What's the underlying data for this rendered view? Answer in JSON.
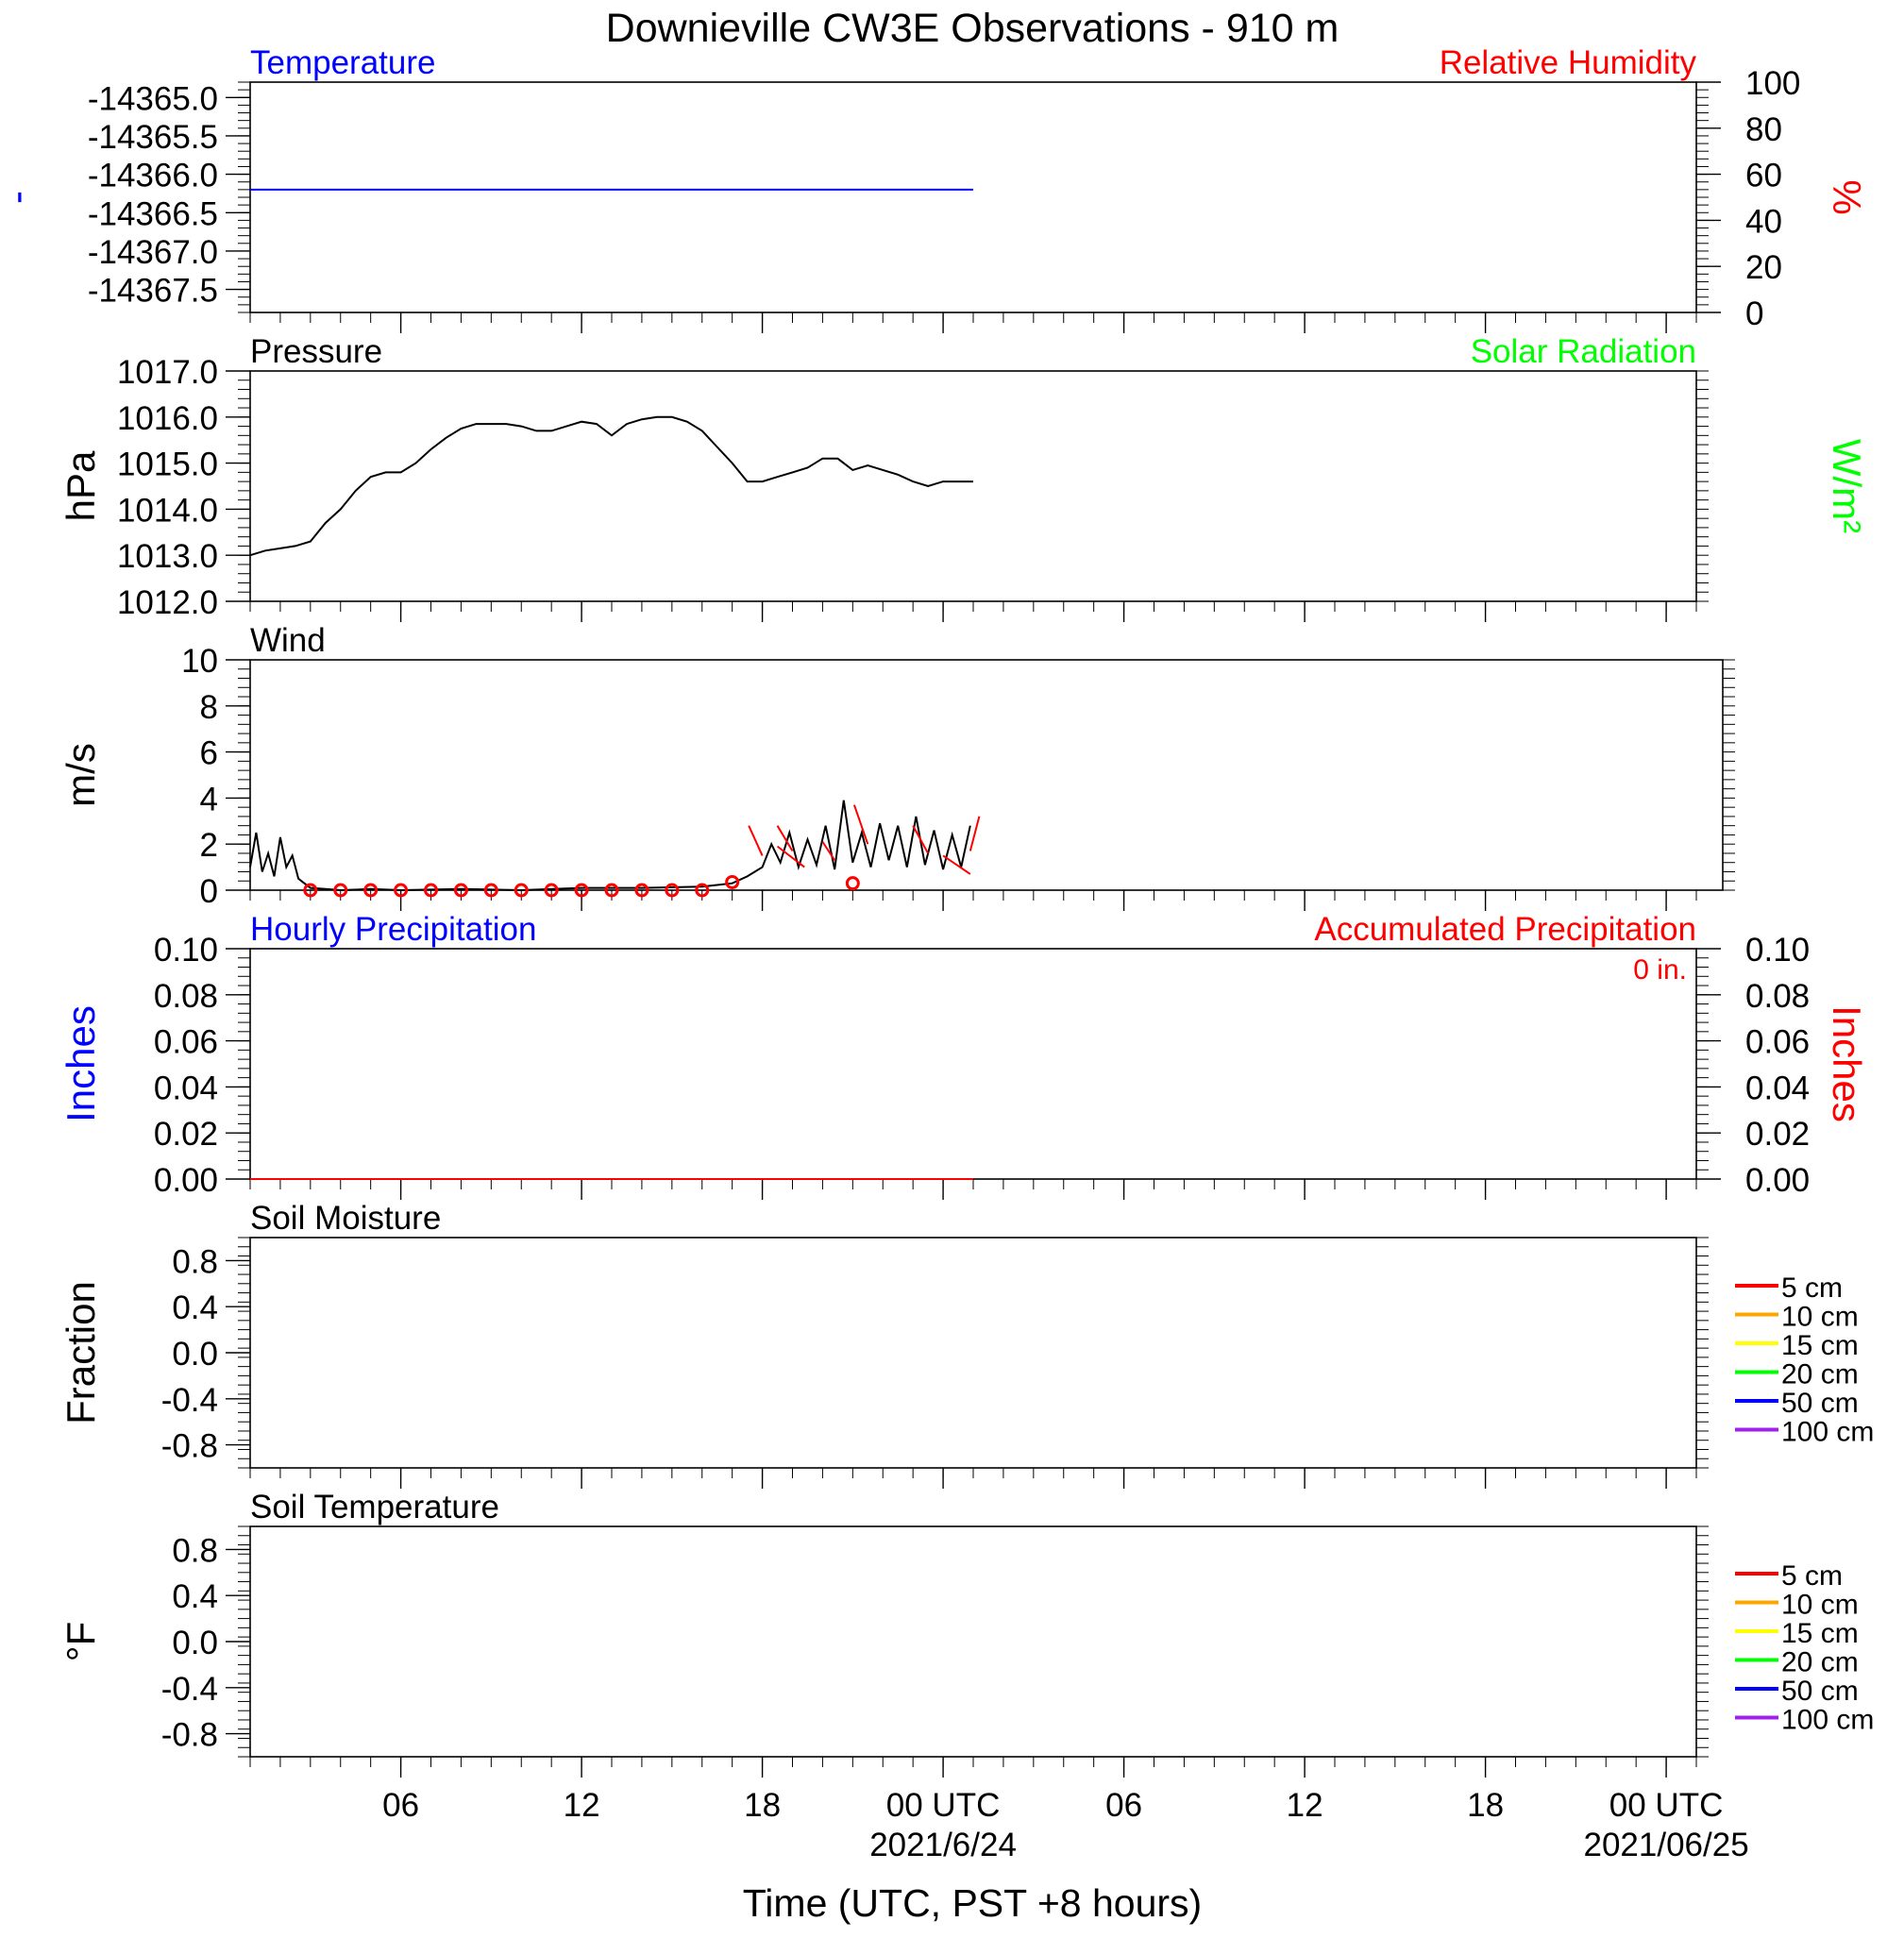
{
  "title": "Downieville CW3E Observations - 910 m",
  "xaxis": {
    "label": "Time (UTC, PST +8 hours)",
    "range_hours": [
      -5,
      43
    ],
    "major_ticks": [
      {
        "h": 0,
        "label": "06"
      },
      {
        "h": 6,
        "label": "12"
      },
      {
        "h": 12,
        "label": "18"
      },
      {
        "h": 18,
        "label": "00 UTC"
      },
      {
        "h": 24,
        "label": "06"
      },
      {
        "h": 30,
        "label": "12"
      },
      {
        "h": 36,
        "label": "18"
      },
      {
        "h": 42,
        "label": "00 UTC"
      }
    ],
    "date_labels": [
      {
        "h": 18,
        "label": "2021/6/24"
      },
      {
        "h": 42,
        "label": "2021/06/25"
      }
    ]
  },
  "soil_legend": [
    {
      "label": "5 cm",
      "color": "#ff0000"
    },
    {
      "label": "10 cm",
      "color": "#ffa500"
    },
    {
      "label": "15 cm",
      "color": "#ffff00"
    },
    {
      "label": "20 cm",
      "color": "#00ff00"
    },
    {
      "label": "50 cm",
      "color": "#0000ff"
    },
    {
      "label": "100 cm",
      "color": "#a020f0"
    }
  ],
  "chart_data": [
    {
      "id": "temperature",
      "type": "line",
      "title_left": "Temperature",
      "title_right": "Relative Humidity",
      "title_left_color": "#0000ff",
      "title_right_color": "#ff0000",
      "ylabel": "-",
      "ylabel_color": "#0000ff",
      "ylim": [
        -14367.8,
        -14364.8
      ],
      "yticks": [
        "-14365.0",
        "-14365.5",
        "-14366.0",
        "-14366.5",
        "-14367.0",
        "-14367.5"
      ],
      "ytick_values": [
        -14365.0,
        -14365.5,
        -14366.0,
        -14366.5,
        -14367.0,
        -14367.5
      ],
      "y2label": "%",
      "y2label_color": "#ff0000",
      "y2lim": [
        0,
        100
      ],
      "y2ticks": [
        "100",
        "80",
        "60",
        "40",
        "20",
        "0"
      ],
      "y2tick_values": [
        100,
        80,
        60,
        40,
        20,
        0
      ],
      "series": [
        {
          "color": "#0000ff",
          "x": [
            -5,
            19
          ],
          "y": [
            -14366.2,
            -14366.2
          ]
        }
      ]
    },
    {
      "id": "pressure",
      "type": "line",
      "title_left": "Pressure",
      "title_right": "Solar Radiation",
      "title_left_color": "#000000",
      "title_right_color": "#00ff00",
      "ylabel": "hPa",
      "ylabel_color": "#000000",
      "ylim": [
        1012.0,
        1017.0
      ],
      "yticks": [
        "1017.0",
        "1016.0",
        "1015.0",
        "1014.0",
        "1013.0",
        "1012.0"
      ],
      "ytick_values": [
        1017,
        1016,
        1015,
        1014,
        1013,
        1012
      ],
      "y2label": "W/m²",
      "y2label_color": "#00ff00",
      "series": [
        {
          "color": "#000000",
          "x": [
            -5,
            -4.5,
            -4,
            -3.5,
            -3,
            -2.5,
            -2,
            -1.5,
            -1,
            -0.5,
            0,
            0.5,
            1,
            1.5,
            2,
            2.5,
            3,
            3.5,
            4,
            4.5,
            5,
            5.5,
            6,
            6.5,
            7,
            7.5,
            8,
            8.5,
            9,
            9.5,
            10,
            10.5,
            11,
            11.5,
            12,
            12.5,
            13,
            13.5,
            14,
            14.5,
            15,
            15.5,
            16,
            16.5,
            17,
            17.5,
            18,
            18.5,
            19
          ],
          "y": [
            1013.0,
            1013.1,
            1013.15,
            1013.2,
            1013.3,
            1013.7,
            1014.0,
            1014.4,
            1014.7,
            1014.8,
            1014.8,
            1015.0,
            1015.3,
            1015.55,
            1015.75,
            1015.85,
            1015.85,
            1015.85,
            1015.8,
            1015.7,
            1015.7,
            1015.8,
            1015.9,
            1015.85,
            1015.6,
            1015.85,
            1015.95,
            1016.0,
            1016.0,
            1015.9,
            1015.7,
            1015.35,
            1015.0,
            1014.6,
            1014.6,
            1014.7,
            1014.8,
            1014.9,
            1015.1,
            1015.1,
            1014.85,
            1014.95,
            1014.85,
            1014.75,
            1014.6,
            1014.5,
            1014.6,
            1014.6,
            1014.6
          ]
        }
      ]
    },
    {
      "id": "wind",
      "type": "line",
      "title_left": "Wind",
      "title_left_color": "#000000",
      "ylabel": "m/s",
      "ylabel_color": "#000000",
      "ylim": [
        0,
        10
      ],
      "yticks": [
        "10",
        "8",
        "6",
        "4",
        "2",
        "0"
      ],
      "ytick_values": [
        10,
        8,
        6,
        4,
        2,
        0
      ],
      "series": [
        {
          "color": "#000000",
          "x": [
            -5,
            -4.8,
            -4.6,
            -4.4,
            -4.2,
            -4.0,
            -3.8,
            -3.6,
            -3.4,
            -3.2,
            -3.0,
            -2.5,
            -2,
            -1,
            0,
            2,
            4,
            6,
            8,
            10,
            11,
            11.5,
            12,
            12.3,
            12.6,
            12.9,
            13.2,
            13.5,
            13.8,
            14.1,
            14.4,
            14.7,
            15.0,
            15.3,
            15.6,
            15.9,
            16.2,
            16.5,
            16.8,
            17.1,
            17.4,
            17.7,
            18.0,
            18.3,
            18.6,
            18.9
          ],
          "y": [
            1.0,
            2.5,
            0.8,
            1.6,
            0.6,
            2.3,
            1.0,
            1.5,
            0.5,
            0.3,
            0.1,
            0.05,
            0.0,
            0.05,
            0.0,
            0.05,
            0.0,
            0.1,
            0.1,
            0.15,
            0.3,
            0.6,
            1.0,
            2.0,
            1.2,
            2.5,
            1.0,
            2.2,
            1.1,
            2.8,
            0.9,
            3.9,
            1.2,
            2.5,
            1.0,
            2.9,
            1.3,
            2.8,
            1.0,
            3.2,
            1.1,
            2.6,
            0.9,
            2.4,
            1.0,
            2.8
          ]
        }
      ],
      "wind_circles": {
        "color": "#ff0000",
        "x": [
          -3,
          -2,
          -1,
          0,
          1,
          2,
          3,
          4,
          5,
          6,
          7,
          8,
          9,
          10,
          11,
          15
        ],
        "y": [
          0.0,
          0.0,
          0.0,
          0.0,
          0.0,
          0.0,
          0.0,
          0.0,
          0.0,
          0.0,
          0.0,
          0.0,
          0.0,
          0.0,
          0.35,
          0.3
        ]
      },
      "wind_barbs": {
        "color": "#ff0000",
        "x": [
          12.0,
          12.5,
          13.0,
          14.0,
          15.5,
          17.5,
          18.0,
          18.9
        ],
        "y": [
          1.5,
          1.9,
          1.7,
          2.1,
          2.0,
          1.6,
          1.5,
          1.7
        ],
        "dx": [
          -0.45,
          0.9,
          -0.5,
          0.4,
          -0.45,
          -0.5,
          0.9,
          0.3
        ],
        "dy": [
          1.3,
          -0.9,
          1.1,
          -0.8,
          1.7,
          1.2,
          -0.8,
          1.5
        ]
      }
    },
    {
      "id": "precipitation",
      "type": "line",
      "title_left": "Hourly Precipitation",
      "title_right": "Accumulated Precipitation",
      "title_left_color": "#0000ff",
      "title_right_color": "#ff0000",
      "annotation": "0 in.",
      "ylabel": "Inches",
      "ylabel_color": "#0000ff",
      "ylim": [
        0,
        0.1
      ],
      "yticks": [
        "0.10",
        "0.08",
        "0.06",
        "0.04",
        "0.02",
        "0.00"
      ],
      "ytick_values": [
        0.1,
        0.08,
        0.06,
        0.04,
        0.02,
        0.0
      ],
      "y2label": "Inches",
      "y2label_color": "#ff0000",
      "y2lim": [
        0,
        0.1
      ],
      "y2ticks": [
        "0.10",
        "0.08",
        "0.06",
        "0.04",
        "0.02",
        "0.00"
      ],
      "y2tick_values": [
        0.1,
        0.08,
        0.06,
        0.04,
        0.02,
        0.0
      ],
      "series": [
        {
          "color": "#0000ff",
          "x": [
            -5,
            19
          ],
          "y": [
            0,
            0
          ]
        },
        {
          "color": "#ff0000",
          "x": [
            -5,
            19
          ],
          "y": [
            0,
            0
          ]
        }
      ]
    },
    {
      "id": "soil_moisture",
      "type": "line",
      "title_left": "Soil Moisture",
      "title_left_color": "#000000",
      "ylabel": "Fraction",
      "ylabel_color": "#000000",
      "ylim": [
        -1.0,
        1.0
      ],
      "yticks": [
        "0.8",
        "0.4",
        "0.0",
        "-0.4",
        "-0.8"
      ],
      "ytick_values": [
        0.8,
        0.4,
        0.0,
        -0.4,
        -0.8
      ],
      "series": []
    },
    {
      "id": "soil_temperature",
      "type": "line",
      "title_left": "Soil Temperature",
      "title_left_color": "#000000",
      "ylabel": "°F",
      "ylabel_color": "#000000",
      "ylim": [
        -1.0,
        1.0
      ],
      "yticks": [
        "0.8",
        "0.4",
        "0.0",
        "-0.4",
        "-0.8"
      ],
      "ytick_values": [
        0.8,
        0.4,
        0.0,
        -0.4,
        -0.8
      ],
      "series": []
    }
  ]
}
